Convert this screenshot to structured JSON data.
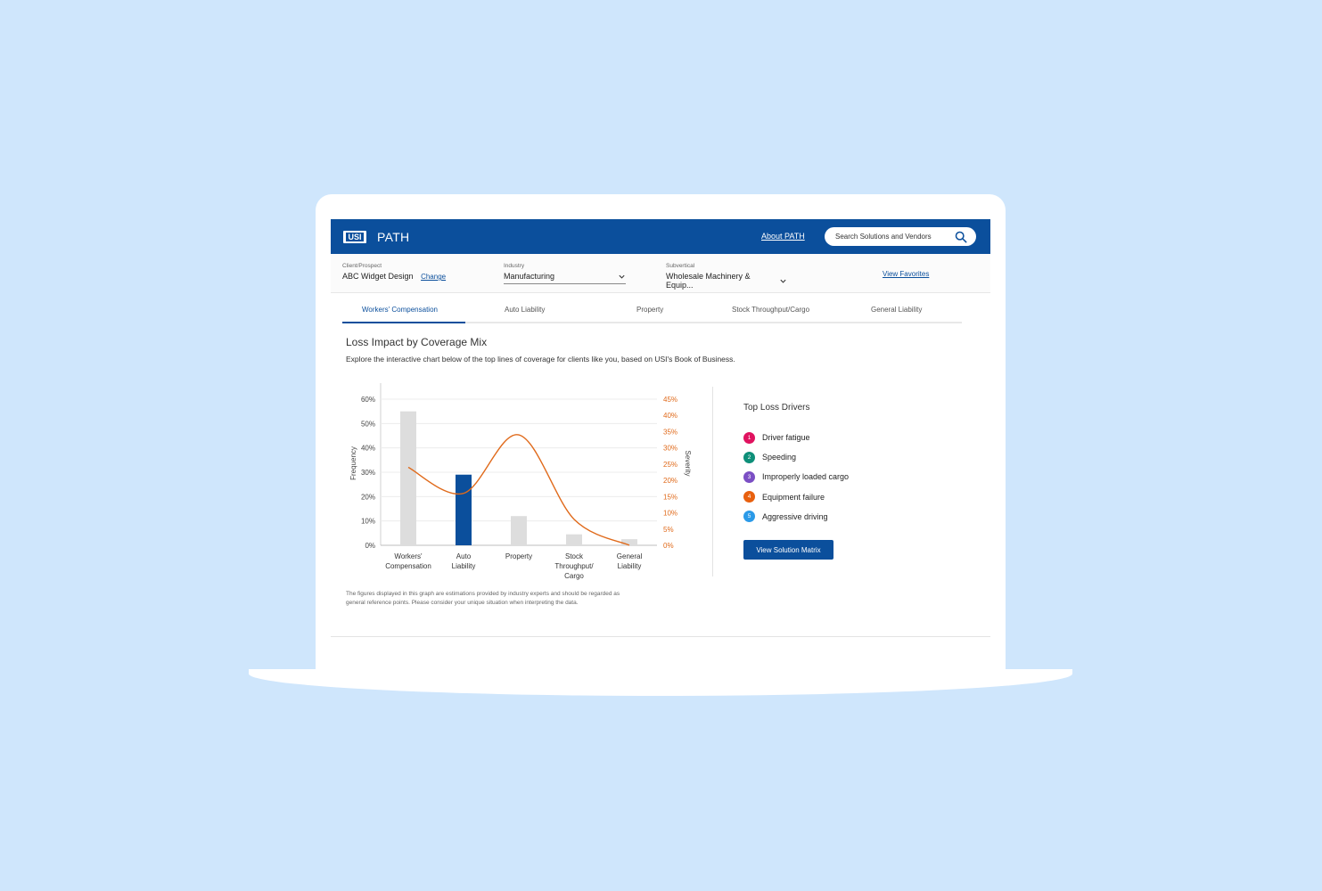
{
  "header": {
    "logo_text": "USI",
    "app_title": "PATH",
    "about_link": "About PATH",
    "search_placeholder": "Search Solutions and Vendors"
  },
  "filters": {
    "client_label": "Client/Prospect",
    "client_value": "ABC Widget Design",
    "change_link": "Change",
    "industry_label": "Industry",
    "industry_value": "Manufacturing",
    "subvertical_label": "Subvertical",
    "subvertical_value": "Wholesale Machinery & Equip...",
    "favorites_link": "View Favorites"
  },
  "tabs": [
    {
      "label": "Workers' Compensation",
      "active": true
    },
    {
      "label": "Auto Liability",
      "active": false
    },
    {
      "label": "Property",
      "active": false
    },
    {
      "label": "Stock Throughput/Cargo",
      "active": false
    },
    {
      "label": "General Liability",
      "active": false
    }
  ],
  "main": {
    "title": "Loss Impact by Coverage Mix",
    "subtitle": "Explore the interactive chart below of the top lines of coverage for clients like you, based on USI's Book of Business.",
    "disclaimer": "The figures displayed in this graph are estimations provided by industry experts and should be regarded as general reference points. Please consider your unique situation when interpreting the data."
  },
  "chart_data": {
    "type": "bar",
    "categories": [
      [
        "Workers'",
        "Compensation"
      ],
      [
        "Auto",
        "Liability"
      ],
      [
        "Property"
      ],
      [
        "Stock",
        "Throughput/",
        "Cargo"
      ],
      [
        "General",
        "Liability"
      ]
    ],
    "series": [
      {
        "type": "bar",
        "axis": "left",
        "values": [
          55,
          29,
          12,
          4.5,
          2.5
        ]
      },
      {
        "type": "line",
        "axis": "right",
        "values": [
          24,
          16,
          34,
          8,
          0
        ]
      }
    ],
    "highlighted_category": 1,
    "ylabel": "Frequency",
    "y2label": "Severity",
    "ylim": [
      0,
      60
    ],
    "y2lim": [
      0,
      45
    ],
    "yticks": [
      "0%",
      "10%",
      "20%",
      "30%",
      "40%",
      "50%",
      "60%"
    ],
    "y2ticks": [
      "0%",
      "5%",
      "10%",
      "15%",
      "20%",
      "25%",
      "30%",
      "35%",
      "40%",
      "45%"
    ],
    "grid": true,
    "colors": {
      "bar": "#dddddd",
      "bar_highlight": "#0b4f9c",
      "line": "#e06a1b"
    }
  },
  "drivers": {
    "title": "Top Loss Drivers",
    "items": [
      {
        "num": "1",
        "label": "Driver fatigue",
        "color": "#e0125f"
      },
      {
        "num": "2",
        "label": "Speeding",
        "color": "#0e8f79"
      },
      {
        "num": "3",
        "label": "Improperly loaded cargo",
        "color": "#7b4fc4"
      },
      {
        "num": "4",
        "label": "Equipment failure",
        "color": "#e8600e"
      },
      {
        "num": "5",
        "label": "Aggressive driving",
        "color": "#2b9ae8"
      }
    ],
    "button": "View Solution Matrix"
  }
}
